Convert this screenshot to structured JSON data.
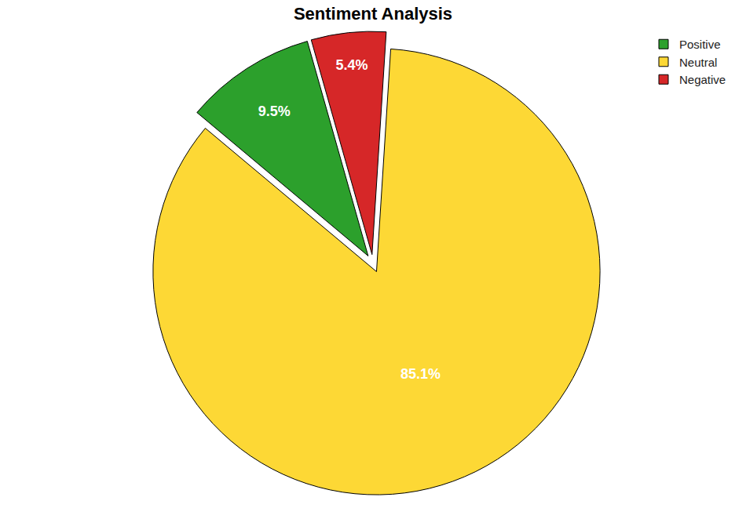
{
  "chart_data": {
    "type": "pie",
    "title": "Sentiment Analysis",
    "categories": [
      "Positive",
      "Neutral",
      "Negative"
    ],
    "values": [
      9.5,
      85.1,
      5.4
    ],
    "value_labels": [
      "9.5%",
      "85.1%",
      "5.4%"
    ],
    "colors": [
      "#2ca02c",
      "#fdd835",
      "#d62728"
    ],
    "data_labels": true,
    "legend": "upper right"
  }
}
